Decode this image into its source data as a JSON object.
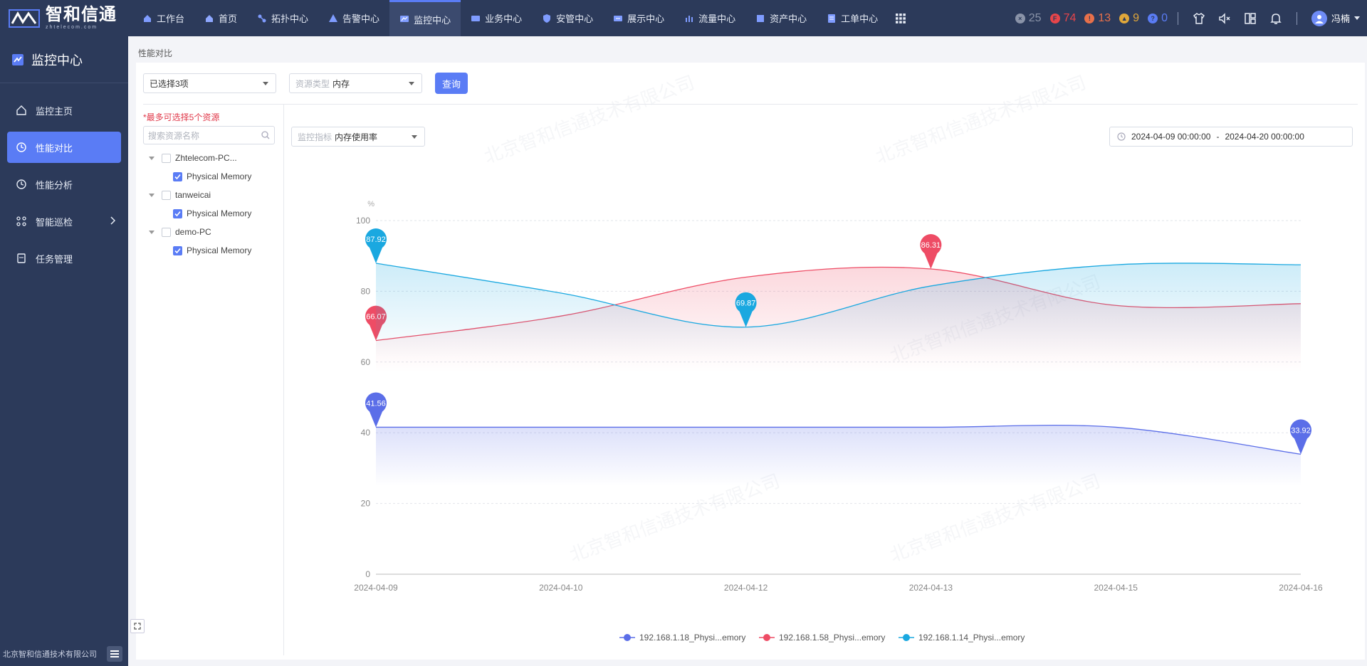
{
  "brand": {
    "name": "智和信通",
    "subtitle": "zhtelecom.com"
  },
  "nav": {
    "items": [
      {
        "label": "工作台",
        "icon": "home-icon"
      },
      {
        "label": "首页",
        "icon": "house-icon"
      },
      {
        "label": "拓扑中心",
        "icon": "topology-icon"
      },
      {
        "label": "告警中心",
        "icon": "alarm-icon"
      },
      {
        "label": "监控中心",
        "icon": "monitor-icon",
        "active": true
      },
      {
        "label": "业务中心",
        "icon": "business-icon"
      },
      {
        "label": "安管中心",
        "icon": "shield-icon"
      },
      {
        "label": "展示中心",
        "icon": "display-icon"
      },
      {
        "label": "流量中心",
        "icon": "traffic-icon"
      },
      {
        "label": "资产中心",
        "icon": "asset-icon"
      },
      {
        "label": "工单中心",
        "icon": "ticket-icon"
      }
    ]
  },
  "alarm_counts": [
    {
      "value": "25",
      "color": "#8a93a8",
      "glyph": "×"
    },
    {
      "value": "74",
      "color": "#e8454a",
      "glyph": "F"
    },
    {
      "value": "13",
      "color": "#e8704a",
      "glyph": "!"
    },
    {
      "value": "9",
      "color": "#e0a73a",
      "glyph": "▲"
    },
    {
      "value": "0",
      "color": "#5a7cf5",
      "glyph": "?"
    }
  ],
  "user": {
    "name": "冯楠"
  },
  "sidebar": {
    "title": "监控中心",
    "items": [
      {
        "label": "监控主页"
      },
      {
        "label": "性能对比",
        "active": true
      },
      {
        "label": "性能分析"
      },
      {
        "label": "智能巡检"
      },
      {
        "label": "任务管理"
      }
    ],
    "footer": "北京智和信通技术有限公司"
  },
  "breadcrumb": "性能对比",
  "toolbar": {
    "selection": "已选择3项",
    "resource_type_placeholder": "资源类型",
    "resource_type_value": "内存",
    "query_label": "查询"
  },
  "left_pane": {
    "hint": "*最多可选择5个资源",
    "search_placeholder": "搜索资源名称",
    "tree": [
      {
        "name": "Zhtelecom-PC...",
        "child": "Physical Memory"
      },
      {
        "name": "tanweicai",
        "child": "Physical Memory"
      },
      {
        "name": "demo-PC",
        "child": "Physical Memory"
      }
    ]
  },
  "metric": {
    "placeholder": "监控指标",
    "value": "内存使用率"
  },
  "date_range": {
    "start": "2024-04-09 00:00:00",
    "sep": "-",
    "end": "2024-04-20 00:00:00"
  },
  "watermark": "北京智和信通技术有限公司",
  "chart_data": {
    "type": "area",
    "ylabel": "%",
    "ylim": [
      0,
      100
    ],
    "yticks": [
      0,
      20,
      40,
      60,
      80,
      100
    ],
    "x": [
      "2024-04-09",
      "2024-04-10",
      "2024-04-12",
      "2024-04-13",
      "2024-04-15",
      "2024-04-16"
    ],
    "grid": true,
    "legend_position": "bottom",
    "series": [
      {
        "name": "192.168.1.18_Physi...emory",
        "color": "#5b6ee8",
        "values": [
          41.56,
          41.56,
          41.56,
          41.56,
          41.56,
          33.92
        ],
        "markers": [
          {
            "i": 0,
            "label": "41.56"
          },
          {
            "i": 5,
            "label": "33.92"
          }
        ]
      },
      {
        "name": "192.168.1.58_Physi...emory",
        "color": "#ee4c65",
        "values": [
          66.07,
          73.0,
          84.0,
          86.31,
          76.0,
          76.5
        ],
        "markers": [
          {
            "i": 0,
            "label": "66.07"
          },
          {
            "i": 3,
            "label": "86.31"
          }
        ]
      },
      {
        "name": "192.168.1.14_Physi...emory",
        "color": "#1aa8e0",
        "values": [
          87.92,
          79.5,
          69.87,
          81.5,
          87.5,
          87.5
        ],
        "markers": [
          {
            "i": 0,
            "label": "87.92"
          },
          {
            "i": 2,
            "label": "69.87"
          }
        ]
      }
    ]
  }
}
